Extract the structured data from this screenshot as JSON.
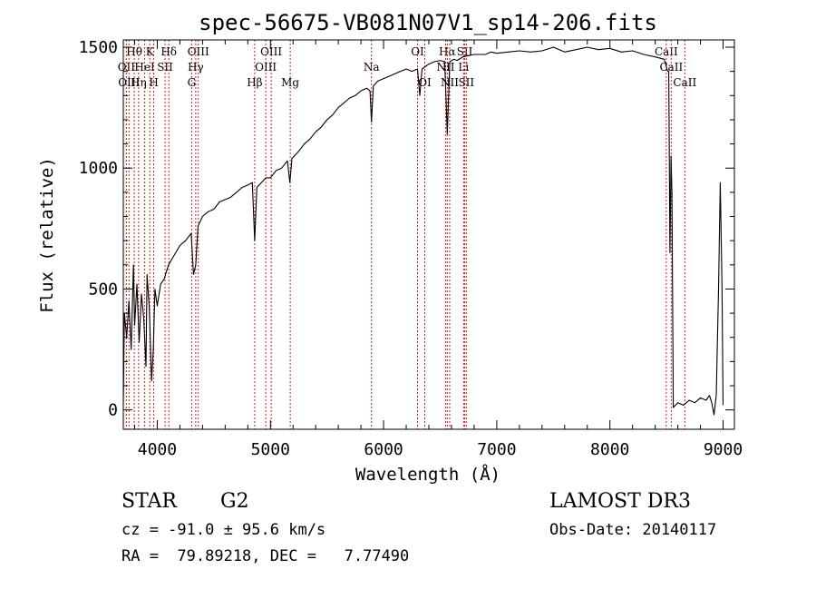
{
  "chart_data": {
    "type": "line",
    "title": "spec-56675-VB081N07V1_sp14-206.fits",
    "xlabel": "Wavelength (Å)",
    "ylabel": "Flux (relative)",
    "xlim": [
      3700,
      9100
    ],
    "ylim": [
      -80,
      1530
    ],
    "x_ticks": [
      4000,
      5000,
      6000,
      7000,
      8000,
      9000
    ],
    "y_ticks": [
      0,
      500,
      1000,
      1500
    ],
    "x_tick_labels": [
      "4000",
      "5000",
      "6000",
      "7000",
      "8000",
      "9000"
    ],
    "y_tick_labels": [
      "0",
      "500",
      "1000",
      "1500"
    ],
    "series": [
      {
        "name": "spectrum",
        "color": "#000000",
        "points": [
          [
            3700,
            20
          ],
          [
            3710,
            400
          ],
          [
            3730,
            300
          ],
          [
            3750,
            450
          ],
          [
            3770,
            250
          ],
          [
            3790,
            600
          ],
          [
            3800,
            350
          ],
          [
            3820,
            520
          ],
          [
            3840,
            280
          ],
          [
            3860,
            480
          ],
          [
            3880,
            380
          ],
          [
            3900,
            180
          ],
          [
            3910,
            560
          ],
          [
            3930,
            420
          ],
          [
            3950,
            120
          ],
          [
            3965,
            250
          ],
          [
            3980,
            500
          ],
          [
            4000,
            430
          ],
          [
            4030,
            520
          ],
          [
            4060,
            540
          ],
          [
            4100,
            600
          ],
          [
            4150,
            640
          ],
          [
            4200,
            680
          ],
          [
            4250,
            700
          ],
          [
            4300,
            730
          ],
          [
            4320,
            560
          ],
          [
            4340,
            600
          ],
          [
            4360,
            760
          ],
          [
            4400,
            800
          ],
          [
            4450,
            820
          ],
          [
            4500,
            830
          ],
          [
            4550,
            860
          ],
          [
            4600,
            870
          ],
          [
            4650,
            880
          ],
          [
            4700,
            900
          ],
          [
            4750,
            920
          ],
          [
            4800,
            930
          ],
          [
            4840,
            940
          ],
          [
            4861,
            700
          ],
          [
            4880,
            920
          ],
          [
            4920,
            940
          ],
          [
            4960,
            960
          ],
          [
            5000,
            960
          ],
          [
            5050,
            990
          ],
          [
            5100,
            1000
          ],
          [
            5150,
            1030
          ],
          [
            5172,
            940
          ],
          [
            5190,
            1040
          ],
          [
            5250,
            1070
          ],
          [
            5300,
            1100
          ],
          [
            5350,
            1120
          ],
          [
            5400,
            1150
          ],
          [
            5450,
            1170
          ],
          [
            5500,
            1200
          ],
          [
            5550,
            1220
          ],
          [
            5600,
            1250
          ],
          [
            5650,
            1270
          ],
          [
            5700,
            1290
          ],
          [
            5750,
            1300
          ],
          [
            5800,
            1320
          ],
          [
            5850,
            1330
          ],
          [
            5880,
            1320
          ],
          [
            5893,
            1190
          ],
          [
            5910,
            1340
          ],
          [
            5950,
            1360
          ],
          [
            6000,
            1370
          ],
          [
            6050,
            1380
          ],
          [
            6100,
            1390
          ],
          [
            6150,
            1400
          ],
          [
            6200,
            1410
          ],
          [
            6250,
            1400
          ],
          [
            6300,
            1410
          ],
          [
            6320,
            1300
          ],
          [
            6340,
            1410
          ],
          [
            6400,
            1430
          ],
          [
            6450,
            1440
          ],
          [
            6500,
            1445
          ],
          [
            6540,
            1440
          ],
          [
            6563,
            1140
          ],
          [
            6585,
            1440
          ],
          [
            6620,
            1450
          ],
          [
            6650,
            1445
          ],
          [
            6700,
            1460
          ],
          [
            6750,
            1465
          ],
          [
            6800,
            1470
          ],
          [
            6850,
            1470
          ],
          [
            6900,
            1470
          ],
          [
            6950,
            1480
          ],
          [
            7000,
            1475
          ],
          [
            7100,
            1480
          ],
          [
            7200,
            1485
          ],
          [
            7300,
            1480
          ],
          [
            7400,
            1485
          ],
          [
            7500,
            1500
          ],
          [
            7600,
            1480
          ],
          [
            7700,
            1490
          ],
          [
            7800,
            1500
          ],
          [
            7900,
            1490
          ],
          [
            8000,
            1495
          ],
          [
            8100,
            1480
          ],
          [
            8200,
            1485
          ],
          [
            8300,
            1470
          ],
          [
            8400,
            1460
          ],
          [
            8480,
            1450
          ],
          [
            8510,
            1400
          ],
          [
            8520,
            1400
          ],
          [
            8530,
            650
          ],
          [
            8540,
            1050
          ],
          [
            8548,
            900
          ],
          [
            8560,
            10
          ],
          [
            8600,
            30
          ],
          [
            8650,
            20
          ],
          [
            8700,
            40
          ],
          [
            8750,
            30
          ],
          [
            8800,
            50
          ],
          [
            8850,
            40
          ],
          [
            8880,
            60
          ],
          [
            8900,
            30
          ],
          [
            8920,
            -20
          ],
          [
            8940,
            60
          ],
          [
            8960,
            500
          ],
          [
            8975,
            940
          ],
          [
            8990,
            520
          ],
          [
            9000,
            20
          ]
        ]
      }
    ],
    "line_markers": [
      {
        "label": "Hθ",
        "x": 3797,
        "row": 1
      },
      {
        "label": "OII",
        "x": 3727,
        "row": 2
      },
      {
        "label": "OIII",
        "x": 3750,
        "row": 3
      },
      {
        "label": "Hη",
        "x": 3835,
        "row": 3
      },
      {
        "label": "HeI",
        "x": 3889,
        "row": 2
      },
      {
        "label": "K",
        "x": 3934,
        "row": 1
      },
      {
        "label": "H",
        "x": 3969,
        "row": 3
      },
      {
        "label": "SII",
        "x": 4069,
        "row": 2
      },
      {
        "label": "Hδ",
        "x": 4102,
        "row": 1
      },
      {
        "label": "G",
        "x": 4304,
        "row": 3
      },
      {
        "label": "OIII",
        "x": 4363,
        "row": 1
      },
      {
        "label": "Hγ",
        "x": 4340,
        "row": 2
      },
      {
        "label": "Hβ",
        "x": 4861,
        "row": 3
      },
      {
        "label": "OIII",
        "x": 4959,
        "row": 2
      },
      {
        "label": "OIII",
        "x": 5007,
        "row": 1
      },
      {
        "label": "Mg",
        "x": 5175,
        "row": 3
      },
      {
        "label": "Na",
        "x": 5893,
        "row": 2
      },
      {
        "label": "OI",
        "x": 6300,
        "row": 1
      },
      {
        "label": "OI",
        "x": 6364,
        "row": 3
      },
      {
        "label": "Hα",
        "x": 6563,
        "row": 1
      },
      {
        "label": "NII",
        "x": 6548,
        "row": 2
      },
      {
        "label": "NII",
        "x": 6584,
        "row": 3
      },
      {
        "label": "SII",
        "x": 6717,
        "row": 1
      },
      {
        "label": "Li",
        "x": 6707,
        "row": 2
      },
      {
        "label": "SII",
        "x": 6731,
        "row": 3
      },
      {
        "label": "CaII",
        "x": 8498,
        "row": 1
      },
      {
        "label": "CaII",
        "x": 8542,
        "row": 2
      },
      {
        "label": "CaII",
        "x": 8662,
        "row": 3
      }
    ],
    "marker_color": "#cc2020"
  },
  "info": {
    "class_label": "STAR",
    "subclass": "G2",
    "survey": "LAMOST DR3",
    "cz": "cz = -91.0 ± 95.6 km/s",
    "obs_date": "Obs-Date: 20140117",
    "coords": "RA =  79.89218, DEC =   7.77490"
  }
}
